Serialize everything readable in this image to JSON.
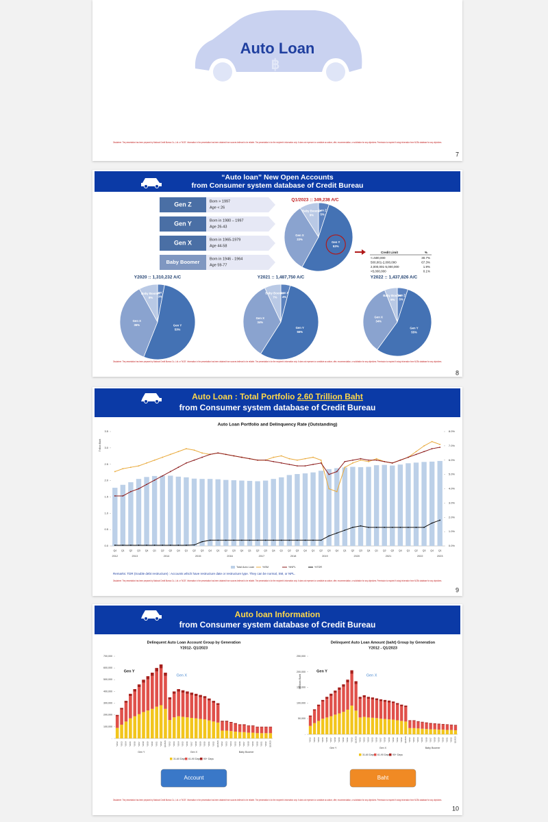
{
  "disclaimer": "Disclaimer: The presentation has been prepared by National Credit Bureau Co., Ltd. or \"NCB\". Information in the presentation has been obtained from sources believed to be reliable. The presentation is for the recipient's information only. It does not represent or constitute an advice, offer, recommendation, or solicitation for any objectives. Permission is required if using information from NCB's database for any objectives.",
  "cover": {
    "title": "Auto Loan",
    "page": "7"
  },
  "generations": {
    "title1": "“Auto loan” New Open Accounts",
    "title2": "from Consumer system database of Credit Bureau",
    "page": "8",
    "groups": [
      {
        "name": "Gen Z",
        "lines": [
          "Born > 1997",
          "Age  < 26"
        ]
      },
      {
        "name": "Gen Y",
        "lines": [
          "Born in 1980 – 1997",
          "Age 26-43"
        ]
      },
      {
        "name": "Gen X",
        "lines": [
          "Born in 1965-1979",
          "Age 44-58"
        ]
      },
      {
        "name": "Baby Boomer",
        "lines": [
          "Born in 1946 - 1964",
          "Age 59-77"
        ]
      }
    ],
    "credit_table": {
      "header": [
        "Credit Limit",
        "%"
      ],
      "rows": [
        [
          "<=500,000",
          "30.7%"
        ],
        [
          "500,001-2,000,000",
          "67.3%"
        ],
        [
          "2,000,001-5,000,000",
          "1.9%"
        ],
        [
          ">5,000,000",
          "0.1%"
        ]
      ]
    }
  },
  "portfolio": {
    "title": "Auto Loan : Total Portfolio",
    "title_highlight": "2.60 Trillion Baht",
    "title2": "from Consumer system database of Credit Bureau",
    "remark": "Remarks: TDR (trouble debt restructure) : Accounts which have restructure date or restructure type. They can be normal, SM, or NPL.",
    "page": "9"
  },
  "information": {
    "title1": "Auto loan Information",
    "title2": "from Consumer system database of Credit Bureau",
    "page": "10"
  },
  "chart_data": [
    {
      "type": "pie",
      "title": "Q1/2023 :: 349,238 A/C",
      "categories": [
        "Gen Z",
        "Gen Y",
        "Gen X",
        "Baby Boomer"
      ],
      "values": [
        5,
        53,
        33,
        9
      ],
      "value_labels": [
        "5%",
        "53%",
        "33%",
        "9%"
      ],
      "colors": [
        "#5b82bf",
        "#4472b4",
        "#8aa3cf",
        "#b9c9e5"
      ]
    },
    {
      "type": "pie",
      "title": "Y2020 :: 1,310,232 A/C",
      "categories": [
        "Gen Z",
        "Gen Y",
        "Gen X",
        "Baby Boomer"
      ],
      "values": [
        3,
        53,
        36,
        8
      ],
      "value_labels": [
        "3%",
        "53%",
        "36%",
        "8%"
      ],
      "colors": [
        "#5b82bf",
        "#4472b4",
        "#8aa3cf",
        "#b9c9e5"
      ]
    },
    {
      "type": "pie",
      "title": "Y2021 :: 1,487,750 A/C",
      "categories": [
        "Gen Z",
        "Gen Y",
        "Gen X",
        "Baby Boomer"
      ],
      "values": [
        4,
        55,
        34,
        7
      ],
      "value_labels": [
        "4%",
        "55%",
        "34%",
        "7%"
      ],
      "colors": [
        "#5b82bf",
        "#4472b4",
        "#8aa3cf",
        "#b9c9e5"
      ]
    },
    {
      "type": "pie",
      "title": "Y2022 :: 1,437,826 A/C",
      "categories": [
        "Gen Z",
        "Gen Y",
        "Gen X",
        "Baby Boomer"
      ],
      "values": [
        5,
        55,
        34,
        6
      ],
      "value_labels": [
        "5%",
        "55%",
        "34%",
        "6%"
      ],
      "colors": [
        "#5b82bf",
        "#4472b4",
        "#8aa3cf",
        "#b9c9e5"
      ]
    },
    {
      "type": "combo",
      "title": "Auto Loan Portfolio and Delinquency Rate (Outstanding)",
      "y_label": "Trillion Baht",
      "categories": [
        "Q4",
        "Q1",
        "Q2",
        "Q3",
        "Q4",
        "Q1",
        "Q2",
        "Q3",
        "Q4",
        "Q1",
        "Q2",
        "Q3",
        "Q4",
        "Q1",
        "Q2",
        "Q3",
        "Q4",
        "Q1",
        "Q2",
        "Q3",
        "Q4",
        "Q1",
        "Q2",
        "Q3",
        "Q4",
        "Q1",
        "Q2",
        "Q3",
        "Q4",
        "Q1",
        "Q2",
        "Q3",
        "Q4",
        "Q1",
        "Q2",
        "Q3",
        "Q4",
        "Q1",
        "Q2",
        "Q3",
        "Q4",
        "Q1"
      ],
      "years": [
        "2012",
        "2013",
        "2014",
        "2015",
        "2016",
        "2017",
        "2018",
        "2019",
        "2020",
        "2021",
        "2022",
        "2023"
      ],
      "ylim": [
        0,
        3.5
      ],
      "yticks": [
        {
          "value": 0,
          "label": "0.0"
        },
        0.5,
        {
          "value": 1,
          "label": "1.0"
        },
        1.5,
        {
          "value": 2,
          "label": "2.0"
        },
        2.5,
        {
          "value": 3,
          "label": "3.0"
        },
        3.5
      ],
      "y2lim": [
        0,
        8
      ],
      "y2ticks": [
        {
          "value": 0,
          "label": "0.0%"
        },
        {
          "value": 1,
          "label": "1.0%"
        },
        {
          "value": 2,
          "label": "2.0%"
        },
        {
          "value": 3,
          "label": "3.0%"
        },
        {
          "value": 4,
          "label": "4.0%"
        },
        {
          "value": 5,
          "label": "5.0%"
        },
        {
          "value": 6,
          "label": "6.0%"
        },
        {
          "value": 7,
          "label": "7.0%"
        },
        {
          "value": 8,
          "label": "8.0%"
        }
      ],
      "series": [
        {
          "name": "Total Auto Loan",
          "kind": "bar",
          "color": "#bcd0e8",
          "values": [
            1.78,
            1.87,
            1.95,
            2.05,
            2.11,
            2.14,
            2.15,
            2.15,
            2.12,
            2.1,
            2.06,
            2.05,
            2.05,
            2.04,
            2.02,
            2.01,
            2.0,
            1.99,
            1.98,
            2.0,
            2.05,
            2.1,
            2.17,
            2.2,
            2.22,
            2.25,
            2.3,
            2.35,
            2.38,
            2.4,
            2.42,
            2.41,
            2.42,
            2.47,
            2.48,
            2.46,
            2.49,
            2.53,
            2.55,
            2.57,
            2.58,
            2.6
          ]
        },
        {
          "name": "%SM",
          "kind": "line",
          "axis": "y2",
          "color": "#e9a93a",
          "values": [
            5.2,
            5.4,
            5.5,
            5.6,
            5.8,
            6.0,
            6.2,
            6.4,
            6.6,
            6.8,
            6.7,
            6.5,
            6.4,
            6.5,
            6.4,
            6.3,
            6.2,
            6.1,
            6.0,
            6.0,
            6.2,
            6.3,
            6.1,
            6.0,
            6.1,
            6.2,
            6.0,
            4.0,
            3.8,
            5.5,
            5.8,
            6.0,
            5.9,
            6.1,
            5.9,
            5.8,
            6.0,
            6.2,
            6.6,
            7.0,
            7.3,
            7.1
          ]
        },
        {
          "name": "%NPL",
          "kind": "line",
          "axis": "y2",
          "color": "#8b1a1a",
          "values": [
            3.5,
            3.5,
            3.8,
            4.0,
            4.3,
            4.6,
            4.9,
            5.2,
            5.5,
            5.8,
            6.0,
            6.2,
            6.4,
            6.5,
            6.4,
            6.3,
            6.2,
            6.1,
            6.0,
            6.0,
            5.9,
            5.8,
            5.7,
            5.6,
            5.6,
            5.7,
            5.8,
            5.0,
            5.2,
            5.9,
            6.0,
            6.1,
            6.0,
            6.0,
            5.9,
            5.8,
            6.0,
            6.2,
            6.4,
            6.6,
            6.8,
            6.9
          ]
        },
        {
          "name": "%TDR",
          "kind": "line",
          "axis": "y2",
          "color": "#111111",
          "values": [
            0.05,
            0.05,
            0.05,
            0.05,
            0.05,
            0.05,
            0.05,
            0.05,
            0.05,
            0.05,
            0.07,
            0.3,
            0.4,
            0.4,
            0.4,
            0.4,
            0.4,
            0.4,
            0.4,
            0.4,
            0.4,
            0.4,
            0.4,
            0.4,
            0.4,
            0.4,
            0.4,
            0.7,
            0.9,
            1.1,
            1.3,
            1.4,
            1.3,
            1.3,
            1.3,
            1.3,
            1.3,
            1.3,
            1.3,
            1.3,
            1.6,
            1.8
          ]
        }
      ]
    },
    {
      "type": "stacked_bar",
      "title": "Delinquent Auto Loan Account Group by Generation",
      "subtitle": "Y2012- Q1/2023",
      "button": "Account",
      "button_color": "#3a78c8",
      "groups": [
        "Gen Y",
        "Gen X",
        "Baby Boomer"
      ],
      "annotations": [
        "Gen Y",
        "Gen X"
      ],
      "categories": [
        "Y2012",
        "Y2013",
        "Y2014",
        "Y2015",
        "Y2016",
        "Y2017",
        "Y2018",
        "Y2019",
        "Y2020",
        "Y2021",
        "Y2022",
        "Q1/2023",
        "Y2012",
        "Y2013",
        "Y2014",
        "Y2015",
        "Y2016",
        "Y2017",
        "Y2018",
        "Y2019",
        "Y2020",
        "Y2021",
        "Y2022",
        "Q1/2023",
        "Y2012",
        "Y2013",
        "Y2014",
        "Y2015",
        "Y2016",
        "Y2017",
        "Y2018",
        "Y2019",
        "Y2020",
        "Y2021",
        "Y2022",
        "Q1/2023"
      ],
      "ylim": [
        0,
        700000
      ],
      "yticks": [
        {
          "value": 0,
          "label": "-"
        },
        {
          "value": 100000,
          "label": "100,000"
        },
        {
          "value": 200000,
          "label": "200,000"
        },
        {
          "value": 300000,
          "label": "300,000"
        },
        {
          "value": 400000,
          "label": "400,000"
        },
        {
          "value": 500000,
          "label": "500,000"
        },
        {
          "value": 600000,
          "label": "600,000"
        },
        {
          "value": 700000,
          "label": "700,000"
        }
      ],
      "series": [
        {
          "name": "31-60 Days",
          "color": "#f2c51c",
          "values": [
            90000,
            117000,
            144000,
            171000,
            189000,
            207000,
            225000,
            238000,
            252000,
            270000,
            283000,
            252000,
            157000,
            180000,
            189000,
            184000,
            180000,
            175000,
            171000,
            166000,
            162000,
            153000,
            144000,
            135000,
            67000,
            67000,
            63000,
            58000,
            54000,
            54000,
            49000,
            49000,
            45000,
            45000,
            45000,
            45000
          ]
        },
        {
          "name": "61-90 Days",
          "color": "#e0504a",
          "values": [
            100000,
            130000,
            160000,
            190000,
            210000,
            230000,
            250000,
            265000,
            280000,
            300000,
            315000,
            280000,
            175000,
            200000,
            210000,
            205000,
            200000,
            195000,
            190000,
            185000,
            180000,
            170000,
            160000,
            150000,
            75000,
            75000,
            70000,
            65000,
            60000,
            60000,
            55000,
            55000,
            50000,
            50000,
            50000,
            50000
          ]
        },
        {
          "name": "90+ Days",
          "color": "#a6201c",
          "values": [
            10000,
            13000,
            16000,
            19000,
            21000,
            23000,
            25000,
            27000,
            28000,
            30000,
            32000,
            28000,
            18000,
            20000,
            21000,
            21000,
            20000,
            20000,
            19000,
            19000,
            18000,
            17000,
            16000,
            15000,
            8000,
            8000,
            7000,
            7000,
            6000,
            6000,
            6000,
            6000,
            5000,
            5000,
            5000,
            5000
          ]
        }
      ]
    },
    {
      "type": "stacked_bar",
      "title": "Delinquent Auto Loan Amount (baht) Group by Generation",
      "subtitle": "Y2012 - Q1/2023",
      "y_label": "Millions Baht",
      "button": "Baht",
      "button_color": "#f08a24",
      "groups": [
        "Gen Y",
        "Gen X",
        "Baby Boomer"
      ],
      "annotations": [
        "Gen Y",
        "Gen X"
      ],
      "categories": [
        "Y2012",
        "Y2013",
        "Y2014",
        "Y2015",
        "Y2016",
        "Y2017",
        "Y2018",
        "Y2019",
        "Y2020",
        "Y2021",
        "Y2022",
        "Q1/2023",
        "Y2012",
        "Y2013",
        "Y2014",
        "Y2015",
        "Y2016",
        "Y2017",
        "Y2018",
        "Y2019",
        "Y2020",
        "Y2021",
        "Y2022",
        "Q1/2023",
        "Y2012",
        "Y2013",
        "Y2014",
        "Y2015",
        "Y2016",
        "Y2017",
        "Y2018",
        "Y2019",
        "Y2020",
        "Y2021",
        "Y2022",
        "Q1/2023"
      ],
      "ylim": [
        0,
        250000
      ],
      "yticks": [
        {
          "value": 0,
          "label": "-"
        },
        {
          "value": 50000,
          "label": "50,000"
        },
        {
          "value": 100000,
          "label": "100,000"
        },
        {
          "value": 150000,
          "label": "150,000"
        },
        {
          "value": 200000,
          "label": "200,000"
        },
        {
          "value": 250000,
          "label": "250,000"
        }
      ],
      "series": [
        {
          "name": "31-60 Days",
          "color": "#f2c51c",
          "values": [
            27000,
            36000,
            43000,
            50000,
            54000,
            58000,
            63000,
            67000,
            72000,
            79000,
            92000,
            76000,
            54000,
            56000,
            54000,
            53000,
            52000,
            50000,
            49000,
            48000,
            47000,
            45000,
            43000,
            41000,
            20000,
            20000,
            19000,
            18000,
            17000,
            16000,
            16000,
            15000,
            15000,
            14000,
            14000,
            13000
          ]
        },
        {
          "name": "61-90 Days",
          "color": "#e0504a",
          "values": [
            30000,
            40000,
            47000,
            55000,
            60000,
            65000,
            70000,
            75000,
            80000,
            87000,
            102000,
            85000,
            60000,
            62000,
            60000,
            59000,
            57000,
            56000,
            55000,
            54000,
            53000,
            50000,
            47000,
            46000,
            23000,
            23000,
            21000,
            20000,
            19000,
            18000,
            17000,
            17000,
            16000,
            16000,
            15000,
            15000
          ]
        },
        {
          "name": "90+ Days",
          "color": "#a6201c",
          "values": [
            3000,
            4000,
            5000,
            5000,
            6000,
            7000,
            7000,
            8000,
            8000,
            9000,
            11000,
            9000,
            6000,
            7000,
            6000,
            6000,
            6000,
            6000,
            6000,
            6000,
            5000,
            5000,
            5000,
            5000,
            2000,
            2000,
            2000,
            2000,
            2000,
            2000,
            2000,
            2000,
            2000,
            2000,
            2000,
            2000
          ]
        }
      ]
    }
  ]
}
